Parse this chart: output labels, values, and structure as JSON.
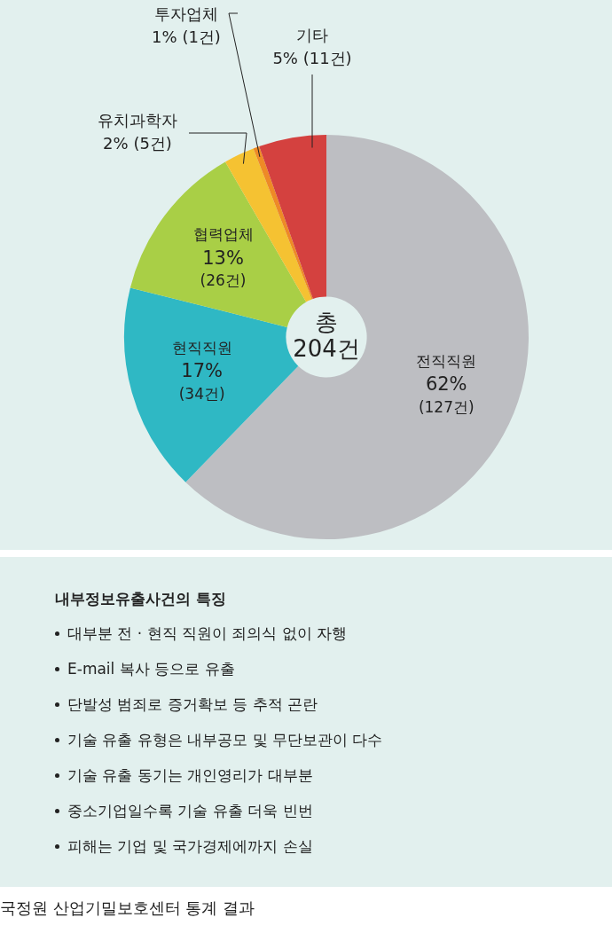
{
  "chart_data": {
    "type": "donut",
    "categories": [
      "전직직원",
      "현직직원",
      "협력업체",
      "유치과학자",
      "투자업체",
      "기타"
    ],
    "values": [
      127,
      34,
      26,
      5,
      1,
      11
    ],
    "colors": [
      "#bdbec2",
      "#2fb8c4",
      "#a9cf46",
      "#f5c232",
      "#ee8a26",
      "#d4413f"
    ],
    "value_labels": [
      "62% (127건)",
      "17% (34건)",
      "13% (26건)",
      "2% (5건)",
      "1% (1건)",
      "5% (11건)"
    ],
    "legend": false,
    "annotations": [
      "총 204건",
      "내부정보유출사건의 특징",
      "대부분 전 · 현직 직원이 죄의식 없이 자행",
      "E-mail 복사 등으로 유출",
      "단발성 범죄로 증거확보 등 추적 곤란",
      "기술 유출 유형은 내부공모 및 무단보관이 다수",
      "기술 유출 동기는 개인영리가 대부분",
      "중소기업일수록 기술 유출 더욱 빈번",
      "피해는 기업 및 국가경제에까지 손실",
      "국정원 산업기밀보호센터 통계 결과"
    ]
  }
}
